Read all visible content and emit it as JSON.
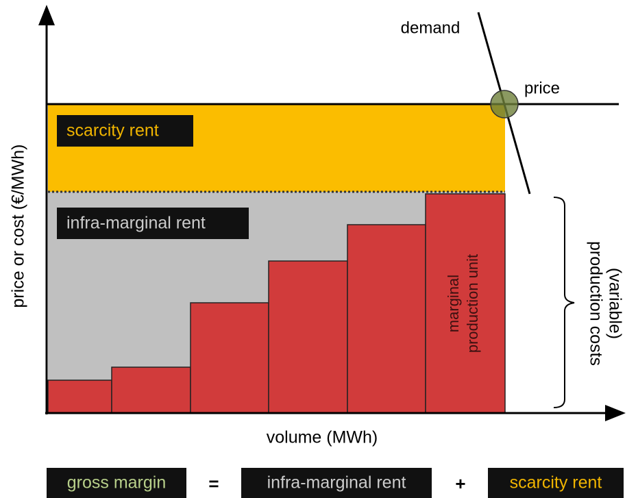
{
  "diagram": {
    "y_axis_label": "price or cost (€/MWh)",
    "x_axis_label": "volume (MWh)",
    "demand_label": "demand",
    "price_label": "price",
    "scarcity_label": "scarcity rent",
    "inframarginal_label": "infra-marginal rent",
    "marginal_unit_label": [
      "marginal",
      "production unit"
    ],
    "cost_label": [
      "(variable)",
      "production costs"
    ],
    "equation": {
      "left": "gross margin",
      "equals": "=",
      "first": "infra-marginal rent",
      "plus": "+",
      "second": "scarcity rent"
    }
  }
}
